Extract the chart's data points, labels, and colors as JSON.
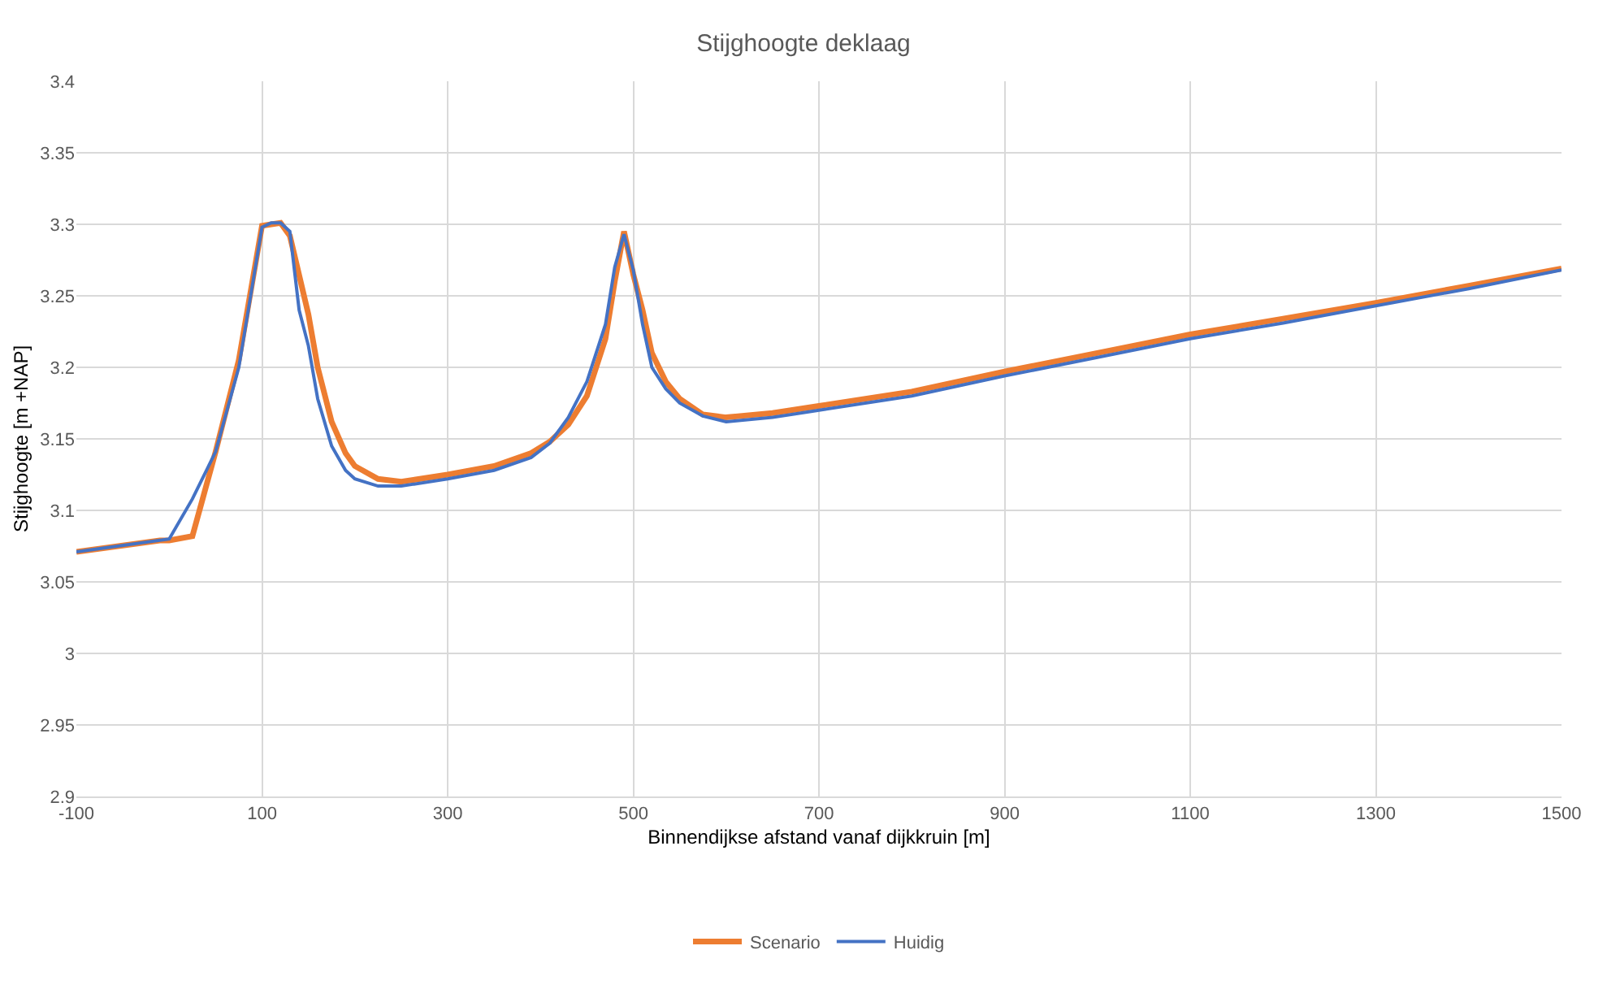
{
  "chart_data": {
    "type": "line",
    "title": "Stijghoogte deklaag",
    "xlabel": "Binnendijkse afstand vanaf dijkkruin [m]",
    "ylabel": "Stijghoogte [m +NAP]",
    "xlim": [
      -100,
      1500
    ],
    "xticks": [
      -100,
      100,
      300,
      500,
      700,
      900,
      1100,
      1300,
      1500
    ],
    "ylim": [
      2.9,
      3.4
    ],
    "yticks": [
      2.9,
      2.95,
      3,
      3.05,
      3.1,
      3.15,
      3.2,
      3.25,
      3.3,
      3.35,
      3.4
    ],
    "grid": true,
    "legend": "bottom",
    "marker": "none",
    "line_style": "solid",
    "series": [
      {
        "name": "Scenario",
        "color": "#ed7d31",
        "x": [
          -100,
          -10,
          0,
          25,
          50,
          75,
          100,
          110,
          120,
          130,
          150,
          160,
          175,
          190,
          200,
          225,
          250,
          300,
          350,
          390,
          410,
          430,
          450,
          470,
          480,
          490,
          500,
          510,
          520,
          535,
          550,
          575,
          600,
          650,
          700,
          800,
          900,
          1000,
          1100,
          1200,
          1300,
          1400,
          1500
        ],
        "values": [
          3.071,
          3.079,
          3.079,
          3.082,
          3.141,
          3.205,
          3.299,
          3.3,
          3.301,
          3.292,
          3.237,
          3.2,
          3.162,
          3.14,
          3.131,
          3.122,
          3.12,
          3.125,
          3.131,
          3.14,
          3.148,
          3.16,
          3.18,
          3.22,
          3.26,
          3.295,
          3.265,
          3.24,
          3.21,
          3.19,
          3.178,
          3.167,
          3.165,
          3.168,
          3.173,
          3.183,
          3.197,
          3.21,
          3.223,
          3.234,
          3.245,
          3.257,
          3.269
        ]
      },
      {
        "name": "Huidig",
        "color": "#4472c4",
        "x": [
          -100,
          0,
          25,
          50,
          75,
          100,
          110,
          120,
          130,
          140,
          150,
          160,
          175,
          190,
          200,
          225,
          250,
          300,
          350,
          390,
          410,
          430,
          450,
          470,
          480,
          490,
          500,
          510,
          520,
          535,
          550,
          575,
          600,
          650,
          700,
          800,
          900,
          1000,
          1100,
          1200,
          1300,
          1400,
          1500
        ],
        "values": [
          3.071,
          3.08,
          3.108,
          3.141,
          3.2,
          3.298,
          3.301,
          3.301,
          3.295,
          3.24,
          3.215,
          3.178,
          3.145,
          3.128,
          3.122,
          3.117,
          3.117,
          3.122,
          3.128,
          3.137,
          3.147,
          3.165,
          3.19,
          3.23,
          3.27,
          3.293,
          3.268,
          3.23,
          3.2,
          3.185,
          3.175,
          3.166,
          3.162,
          3.165,
          3.17,
          3.18,
          3.194,
          3.207,
          3.22,
          3.231,
          3.243,
          3.255,
          3.268
        ]
      }
    ]
  }
}
